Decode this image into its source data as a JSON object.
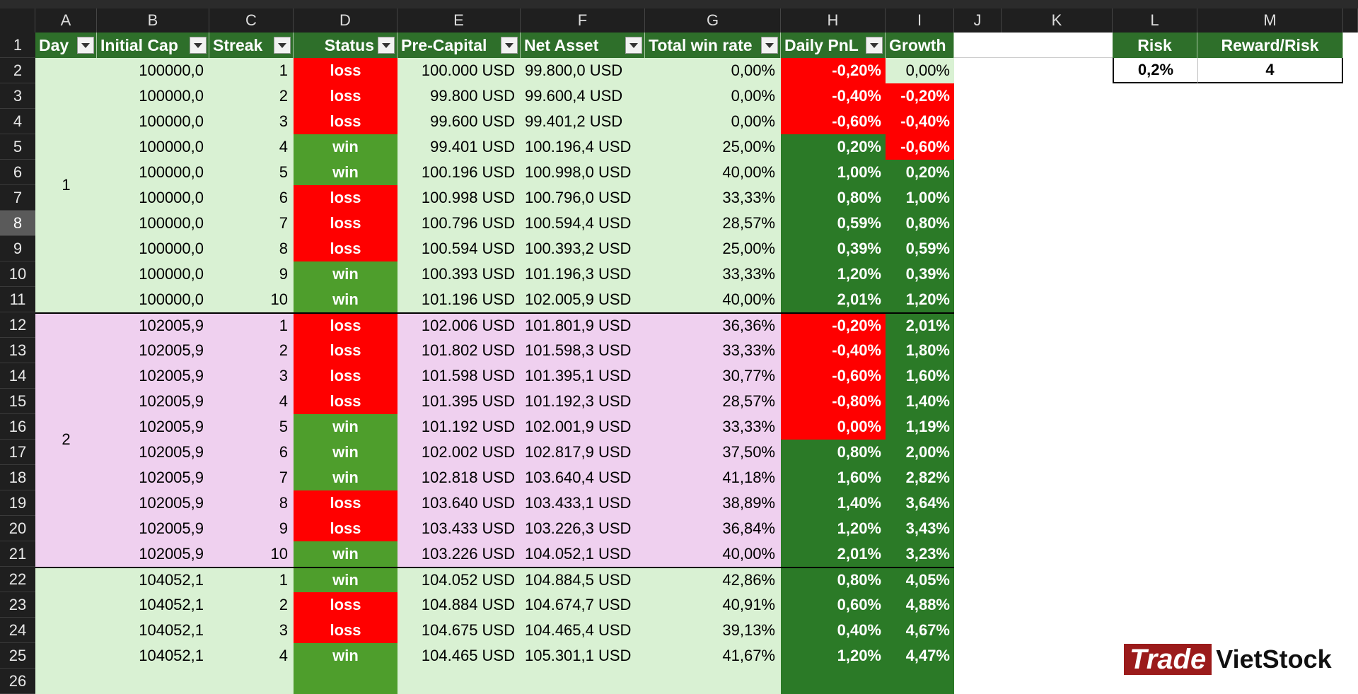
{
  "columns": [
    "A",
    "B",
    "C",
    "D",
    "E",
    "F",
    "G",
    "H",
    "I",
    "J",
    "K",
    "L",
    "M"
  ],
  "table_headers": [
    "Day",
    "Initial Cap",
    "Streak",
    "Status",
    "Pre-Capital",
    "Net Asset",
    "Total win rate",
    "Daily PnL",
    "Growth"
  ],
  "settings": {
    "headers": [
      "Risk",
      "Reward/Risk"
    ],
    "values": [
      "0,2%",
      "4"
    ]
  },
  "groups": [
    {
      "day": "1"
    },
    {
      "day": "2"
    }
  ],
  "rows": [
    {
      "n": "2",
      "cap": "100000,0",
      "streak": "1",
      "status": "loss",
      "pre": "100.000 USD",
      "net": "99.800,0 USD",
      "win": "0,00%",
      "pnl": "-0,20%",
      "growth": "0,00%"
    },
    {
      "n": "3",
      "cap": "100000,0",
      "streak": "2",
      "status": "loss",
      "pre": "99.800 USD",
      "net": "99.600,4 USD",
      "win": "0,00%",
      "pnl": "-0,40%",
      "growth": "-0,20%"
    },
    {
      "n": "4",
      "cap": "100000,0",
      "streak": "3",
      "status": "loss",
      "pre": "99.600 USD",
      "net": "99.401,2 USD",
      "win": "0,00%",
      "pnl": "-0,60%",
      "growth": "-0,40%"
    },
    {
      "n": "5",
      "cap": "100000,0",
      "streak": "4",
      "status": "win",
      "pre": "99.401 USD",
      "net": "100.196,4 USD",
      "win": "25,00%",
      "pnl": "0,20%",
      "growth": "-0,60%"
    },
    {
      "n": "6",
      "cap": "100000,0",
      "streak": "5",
      "status": "win",
      "pre": "100.196 USD",
      "net": "100.998,0 USD",
      "win": "40,00%",
      "pnl": "1,00%",
      "growth": "0,20%"
    },
    {
      "n": "7",
      "cap": "100000,0",
      "streak": "6",
      "status": "loss",
      "pre": "100.998 USD",
      "net": "100.796,0 USD",
      "win": "33,33%",
      "pnl": "0,80%",
      "growth": "1,00%"
    },
    {
      "n": "8",
      "cap": "100000,0",
      "streak": "7",
      "status": "loss",
      "pre": "100.796 USD",
      "net": "100.594,4 USD",
      "win": "28,57%",
      "pnl": "0,59%",
      "growth": "0,80%"
    },
    {
      "n": "9",
      "cap": "100000,0",
      "streak": "8",
      "status": "loss",
      "pre": "100.594 USD",
      "net": "100.393,2 USD",
      "win": "25,00%",
      "pnl": "0,39%",
      "growth": "0,59%"
    },
    {
      "n": "10",
      "cap": "100000,0",
      "streak": "9",
      "status": "win",
      "pre": "100.393 USD",
      "net": "101.196,3 USD",
      "win": "33,33%",
      "pnl": "1,20%",
      "growth": "0,39%"
    },
    {
      "n": "11",
      "cap": "100000,0",
      "streak": "10",
      "status": "win",
      "pre": "101.196 USD",
      "net": "102.005,9 USD",
      "win": "40,00%",
      "pnl": "2,01%",
      "growth": "1,20%"
    },
    {
      "n": "12",
      "cap": "102005,9",
      "streak": "1",
      "status": "loss",
      "pre": "102.006 USD",
      "net": "101.801,9 USD",
      "win": "36,36%",
      "pnl": "-0,20%",
      "growth": "2,01%"
    },
    {
      "n": "13",
      "cap": "102005,9",
      "streak": "2",
      "status": "loss",
      "pre": "101.802 USD",
      "net": "101.598,3 USD",
      "win": "33,33%",
      "pnl": "-0,40%",
      "growth": "1,80%"
    },
    {
      "n": "14",
      "cap": "102005,9",
      "streak": "3",
      "status": "loss",
      "pre": "101.598 USD",
      "net": "101.395,1 USD",
      "win": "30,77%",
      "pnl": "-0,60%",
      "growth": "1,60%"
    },
    {
      "n": "15",
      "cap": "102005,9",
      "streak": "4",
      "status": "loss",
      "pre": "101.395 USD",
      "net": "101.192,3 USD",
      "win": "28,57%",
      "pnl": "-0,80%",
      "growth": "1,40%"
    },
    {
      "n": "16",
      "cap": "102005,9",
      "streak": "5",
      "status": "win",
      "pre": "101.192 USD",
      "net": "102.001,9 USD",
      "win": "33,33%",
      "pnl": "0,00%",
      "growth": "1,19%"
    },
    {
      "n": "17",
      "cap": "102005,9",
      "streak": "6",
      "status": "win",
      "pre": "102.002 USD",
      "net": "102.817,9 USD",
      "win": "37,50%",
      "pnl": "0,80%",
      "growth": "2,00%"
    },
    {
      "n": "18",
      "cap": "102005,9",
      "streak": "7",
      "status": "win",
      "pre": "102.818 USD",
      "net": "103.640,4 USD",
      "win": "41,18%",
      "pnl": "1,60%",
      "growth": "2,82%"
    },
    {
      "n": "19",
      "cap": "102005,9",
      "streak": "8",
      "status": "loss",
      "pre": "103.640 USD",
      "net": "103.433,1 USD",
      "win": "38,89%",
      "pnl": "1,40%",
      "growth": "3,64%"
    },
    {
      "n": "20",
      "cap": "102005,9",
      "streak": "9",
      "status": "loss",
      "pre": "103.433 USD",
      "net": "103.226,3 USD",
      "win": "36,84%",
      "pnl": "1,20%",
      "growth": "3,43%"
    },
    {
      "n": "21",
      "cap": "102005,9",
      "streak": "10",
      "status": "win",
      "pre": "103.226 USD",
      "net": "104.052,1 USD",
      "win": "40,00%",
      "pnl": "2,01%",
      "growth": "3,23%"
    },
    {
      "n": "22",
      "cap": "104052,1",
      "streak": "1",
      "status": "win",
      "pre": "104.052 USD",
      "net": "104.884,5 USD",
      "win": "42,86%",
      "pnl": "0,80%",
      "growth": "4,05%"
    },
    {
      "n": "23",
      "cap": "104052,1",
      "streak": "2",
      "status": "loss",
      "pre": "104.884 USD",
      "net": "104.674,7 USD",
      "win": "40,91%",
      "pnl": "0,60%",
      "growth": "4,88%"
    },
    {
      "n": "24",
      "cap": "104052,1",
      "streak": "3",
      "status": "loss",
      "pre": "104.675 USD",
      "net": "104.465,4 USD",
      "win": "39,13%",
      "pnl": "0,40%",
      "growth": "4,67%"
    },
    {
      "n": "25",
      "cap": "104052,1",
      "streak": "4",
      "status": "win",
      "pre": "104.465 USD",
      "net": "105.301,1 USD",
      "win": "41,67%",
      "pnl": "1,20%",
      "growth": "4,47%"
    }
  ],
  "partial_row_number": "26",
  "logo": {
    "part1": "Trade",
    "part2": "VietStock"
  },
  "colors": {
    "band1": "#d9f1d3",
    "band2": "#efd0ef",
    "header_green": "#2e6f2a",
    "loss_red": "#ff0000",
    "win_green": "#4e9e2c",
    "pnl_green": "#2b7a27",
    "logo_red": "#9b1b1b"
  }
}
